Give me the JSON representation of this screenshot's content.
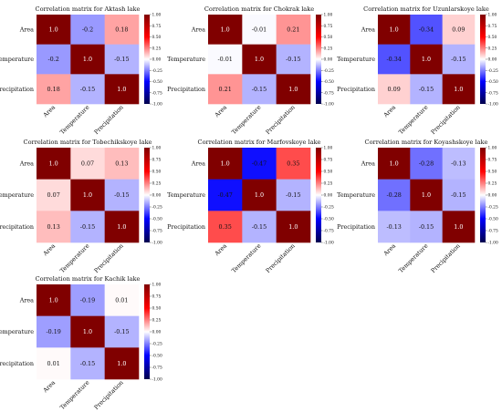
{
  "colormap": {
    "name": "seismic",
    "stops": [
      "#00004d",
      "#0000ff",
      "#ffffff",
      "#ff0000",
      "#800000"
    ]
  },
  "chart_data": [
    {
      "type": "heatmap",
      "title": "Correlation matrix for Aktash lake",
      "categories": [
        "Area",
        "Temperature",
        "Precipitation"
      ],
      "values": [
        [
          1.0,
          -0.2,
          0.18
        ],
        [
          -0.2,
          1.0,
          -0.15
        ],
        [
          0.18,
          -0.15,
          1.0
        ]
      ],
      "labels": [
        [
          "1.0",
          "-0.2",
          "0.18"
        ],
        [
          "-0.2",
          "1.0",
          "-0.15"
        ],
        [
          "0.18",
          "-0.15",
          "1.0"
        ]
      ],
      "colorbar_range": [
        -1.0,
        1.0
      ],
      "colorbar_ticks": [
        "1.00",
        "0.75",
        "0.50",
        "0.25",
        "0.00",
        "-0.25",
        "-0.50",
        "-0.75",
        "-1.00"
      ]
    },
    {
      "type": "heatmap",
      "title": "Correlation matrix for Chokrak lake",
      "categories": [
        "Area",
        "Temperature",
        "Precipitation"
      ],
      "values": [
        [
          1.0,
          -0.01,
          0.21
        ],
        [
          -0.01,
          1.0,
          -0.15
        ],
        [
          0.21,
          -0.15,
          1.0
        ]
      ],
      "labels": [
        [
          "1.0",
          "-0.01",
          "0.21"
        ],
        [
          "-0.01",
          "1.0",
          "-0.15"
        ],
        [
          "0.21",
          "-0.15",
          "1.0"
        ]
      ],
      "colorbar_range": [
        -1.0,
        1.0
      ],
      "colorbar_ticks": [
        "1.00",
        "0.75",
        "0.50",
        "0.25",
        "0.00",
        "-0.25",
        "-0.50",
        "-0.75",
        "-1.00"
      ]
    },
    {
      "type": "heatmap",
      "title": "Correlation matrix for Uzunlarskoye lake",
      "categories": [
        "Area",
        "Temperature",
        "Precipitation"
      ],
      "values": [
        [
          1.0,
          -0.34,
          0.09
        ],
        [
          -0.34,
          1.0,
          -0.15
        ],
        [
          0.09,
          -0.15,
          1.0
        ]
      ],
      "labels": [
        [
          "1.0",
          "-0.34",
          "0.09"
        ],
        [
          "-0.34",
          "1.0",
          "-0.15"
        ],
        [
          "0.09",
          "-0.15",
          "1.0"
        ]
      ],
      "colorbar_range": [
        -1.0,
        1.0
      ],
      "colorbar_ticks": [
        "1.00",
        "0.75",
        "0.50",
        "0.25",
        "0.00",
        "-0.25",
        "-0.50",
        "-0.75",
        "-1.00"
      ]
    },
    {
      "type": "heatmap",
      "title": "Correlation matrix for Tobechikskoye lake",
      "categories": [
        "Area",
        "Temperature",
        "Precipitation"
      ],
      "values": [
        [
          1.0,
          0.07,
          0.13
        ],
        [
          0.07,
          1.0,
          -0.15
        ],
        [
          0.13,
          -0.15,
          1.0
        ]
      ],
      "labels": [
        [
          "1.0",
          "0.07",
          "0.13"
        ],
        [
          "0.07",
          "1.0",
          "-0.15"
        ],
        [
          "0.13",
          "-0.15",
          "1.0"
        ]
      ],
      "colorbar_range": [
        -1.0,
        1.0
      ],
      "colorbar_ticks": [
        "1.00",
        "0.75",
        "0.50",
        "0.25",
        "0.00",
        "-0.25",
        "-0.50",
        "-0.75",
        "-1.00"
      ]
    },
    {
      "type": "heatmap",
      "title": "Correlation matrix for Marfovskoye lake",
      "categories": [
        "Area",
        "Temperature",
        "Precipitation"
      ],
      "values": [
        [
          1.0,
          -0.47,
          0.35
        ],
        [
          -0.47,
          1.0,
          -0.15
        ],
        [
          0.35,
          -0.15,
          1.0
        ]
      ],
      "labels": [
        [
          "1.0",
          "-0.47",
          "0.35"
        ],
        [
          "-0.47",
          "1.0",
          "-0.15"
        ],
        [
          "0.35",
          "-0.15",
          "1.0"
        ]
      ],
      "colorbar_range": [
        -1.0,
        1.0
      ],
      "colorbar_ticks": [
        "1.00",
        "0.75",
        "0.50",
        "0.25",
        "0.00",
        "-0.25",
        "-0.50",
        "-0.75",
        "-1.00"
      ]
    },
    {
      "type": "heatmap",
      "title": "Correlation matrix for Koyashskoye lake",
      "categories": [
        "Area",
        "Temperature",
        "Precipitation"
      ],
      "values": [
        [
          1.0,
          -0.28,
          -0.13
        ],
        [
          -0.28,
          1.0,
          -0.15
        ],
        [
          -0.13,
          -0.15,
          1.0
        ]
      ],
      "labels": [
        [
          "1.0",
          "-0.28",
          "-0.13"
        ],
        [
          "-0.28",
          "1.0",
          "-0.15"
        ],
        [
          "-0.13",
          "-0.15",
          "1.0"
        ]
      ],
      "colorbar_range": [
        -1.0,
        1.0
      ],
      "colorbar_ticks": [
        "1.00",
        "0.75",
        "0.50",
        "0.25",
        "0.00",
        "-0.25",
        "-0.50",
        "-0.75",
        "-1.00"
      ]
    },
    {
      "type": "heatmap",
      "title": "Correlation matrix for Kachik lake",
      "categories": [
        "Area",
        "Temperature",
        "Precipitation"
      ],
      "values": [
        [
          1.0,
          -0.19,
          0.01
        ],
        [
          -0.19,
          1.0,
          -0.15
        ],
        [
          0.01,
          -0.15,
          1.0
        ]
      ],
      "labels": [
        [
          "1.0",
          "-0.19",
          "0.01"
        ],
        [
          "-0.19",
          "1.0",
          "-0.15"
        ],
        [
          "0.01",
          "-0.15",
          "1.0"
        ]
      ],
      "colorbar_range": [
        -1.0,
        1.0
      ],
      "colorbar_ticks": [
        "1.00",
        "0.75",
        "0.50",
        "0.25",
        "0.00",
        "-0.25",
        "-0.50",
        "-0.75",
        "-1.00"
      ]
    }
  ]
}
